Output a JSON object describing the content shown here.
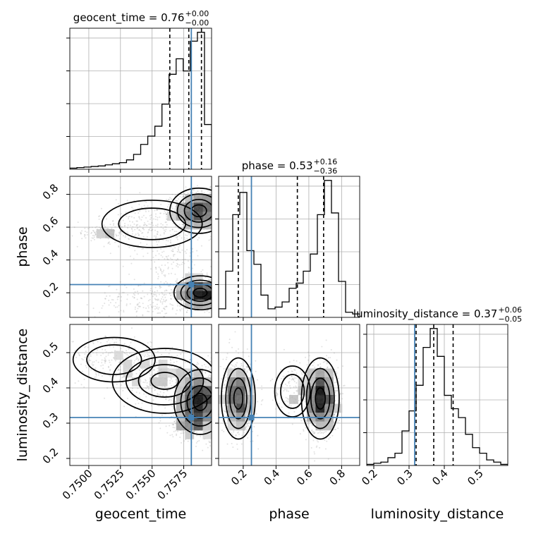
{
  "chart_data": {
    "type": "corner",
    "params": [
      "geocent_time",
      "phase",
      "luminosity_distance"
    ],
    "truth_color": "#4682b4",
    "truths": {
      "geocent_time": 0.7581,
      "phase": 0.25,
      "luminosity_distance": 0.316
    },
    "titles": [
      {
        "param": "geocent_time",
        "label": "geocent_time = 0.76",
        "sup": "+0.00",
        "sub": "−0.00"
      },
      {
        "param": "phase",
        "label": "phase = 0.53",
        "sup": "+0.16",
        "sub": "−0.36"
      },
      {
        "param": "luminosity_distance",
        "label": "luminosity_distance = 0.37",
        "sup": "+0.06",
        "sub": "−0.05"
      }
    ],
    "axes": {
      "geocent_time": {
        "range": [
          0.7485,
          0.7597
        ],
        "ticks": [
          0.75,
          0.7525,
          0.755,
          0.7575
        ],
        "tick_labels": [
          "0.7500",
          "0.7525",
          "0.7550",
          "0.7575"
        ],
        "label": "geocent_time"
      },
      "phase": {
        "range": [
          0.05,
          0.91
        ],
        "ticks": [
          0.2,
          0.4,
          0.6,
          0.8
        ],
        "tick_labels": [
          "0.2",
          "0.4",
          "0.6",
          "0.8"
        ],
        "label": "phase"
      },
      "luminosity_distance": {
        "range": [
          0.18,
          0.58
        ],
        "ticks": [
          0.2,
          0.3,
          0.4,
          0.5
        ],
        "tick_labels": [
          "0.2",
          "0.3",
          "0.4",
          "0.5"
        ],
        "label": "luminosity_distance"
      }
    },
    "histograms": {
      "geocent_time": {
        "bin_edges": [
          0.7485,
          0.74906,
          0.74962,
          0.75018,
          0.75074,
          0.7513,
          0.75186,
          0.75242,
          0.75298,
          0.75354,
          0.7541,
          0.75466,
          0.75522,
          0.75578,
          0.75634,
          0.7569,
          0.75746,
          0.75802,
          0.75858,
          0.75914,
          0.7597
        ],
        "counts": [
          2,
          3,
          4,
          5,
          6,
          8,
          10,
          12,
          17,
          27,
          45,
          60,
          78,
          118,
          172,
          200,
          178,
          232,
          248,
          81
        ],
        "quantiles": [
          0.7564,
          0.7579,
          0.7589
        ]
      },
      "phase": {
        "bin_edges": [
          0.05,
          0.093,
          0.136,
          0.179,
          0.222,
          0.265,
          0.308,
          0.351,
          0.394,
          0.437,
          0.48,
          0.523,
          0.566,
          0.609,
          0.652,
          0.695,
          0.738,
          0.781,
          0.824,
          0.867,
          0.91
        ],
        "counts": [
          5,
          27,
          60,
          73,
          39,
          31,
          13,
          5,
          6,
          9,
          17,
          20,
          27,
          37,
          60,
          80,
          61,
          21,
          3,
          2
        ],
        "quantiles": [
          0.17,
          0.53,
          0.69
        ]
      },
      "luminosity_distance": {
        "bin_edges": [
          0.18,
          0.2,
          0.22,
          0.24,
          0.26,
          0.28,
          0.3,
          0.32,
          0.34,
          0.36,
          0.38,
          0.4,
          0.42,
          0.44,
          0.46,
          0.48,
          0.5,
          0.52,
          0.54,
          0.56,
          0.58
        ],
        "counts": [
          1,
          2,
          3,
          7,
          11,
          31,
          49,
          72,
          106,
          123,
          98,
          63,
          51,
          43,
          28,
          16,
          11,
          5,
          3,
          1
        ],
        "quantiles": [
          0.32,
          0.37,
          0.425
        ]
      }
    },
    "clusters": {
      "geocent_time_phase": [
        {
          "cx": 0.7587,
          "cy": 0.7,
          "sx": 0.001,
          "sy": 0.06,
          "n": 1000,
          "rot": 0.0
        },
        {
          "cx": 0.7588,
          "cy": 0.2,
          "sx": 0.0009,
          "sy": 0.045,
          "n": 900,
          "rot": 0.0
        },
        {
          "cx": 0.755,
          "cy": 0.62,
          "sx": 0.0022,
          "sy": 0.08,
          "n": 250,
          "rot": 0.0
        },
        {
          "cx": 0.755,
          "cy": 0.15,
          "sx": 0.0022,
          "sy": 0.06,
          "n": 220,
          "rot": 0.0
        },
        {
          "cx": 0.7515,
          "cy": 0.57,
          "sx": 0.0015,
          "sy": 0.025,
          "n": 160,
          "rot": 0.0
        },
        {
          "cx": 0.7565,
          "cy": 0.4,
          "sx": 0.0015,
          "sy": 0.1,
          "n": 160,
          "rot": 0.0
        }
      ],
      "geocent_time_luminosity_distance": [
        {
          "cx": 0.7588,
          "cy": 0.36,
          "sx": 0.0009,
          "sy": 0.04,
          "n": 1000,
          "rot": 0.0
        },
        {
          "cx": 0.756,
          "cy": 0.42,
          "sx": 0.0018,
          "sy": 0.04,
          "n": 350,
          "rot": 0.0
        },
        {
          "cx": 0.752,
          "cy": 0.48,
          "sx": 0.0018,
          "sy": 0.035,
          "n": 250,
          "rot": 0.0
        },
        {
          "cx": 0.758,
          "cy": 0.3,
          "sx": 0.0008,
          "sy": 0.02,
          "n": 200,
          "rot": 0.0
        }
      ],
      "phase_luminosity_distance": [
        {
          "cx": 0.67,
          "cy": 0.37,
          "sx": 0.05,
          "sy": 0.05,
          "n": 1200,
          "rot": 0.0
        },
        {
          "cx": 0.17,
          "cy": 0.37,
          "sx": 0.045,
          "sy": 0.05,
          "n": 900,
          "rot": 0.0
        },
        {
          "cx": 0.5,
          "cy": 0.39,
          "sx": 0.06,
          "sy": 0.04,
          "n": 150,
          "rot": 0.0
        }
      ]
    }
  }
}
